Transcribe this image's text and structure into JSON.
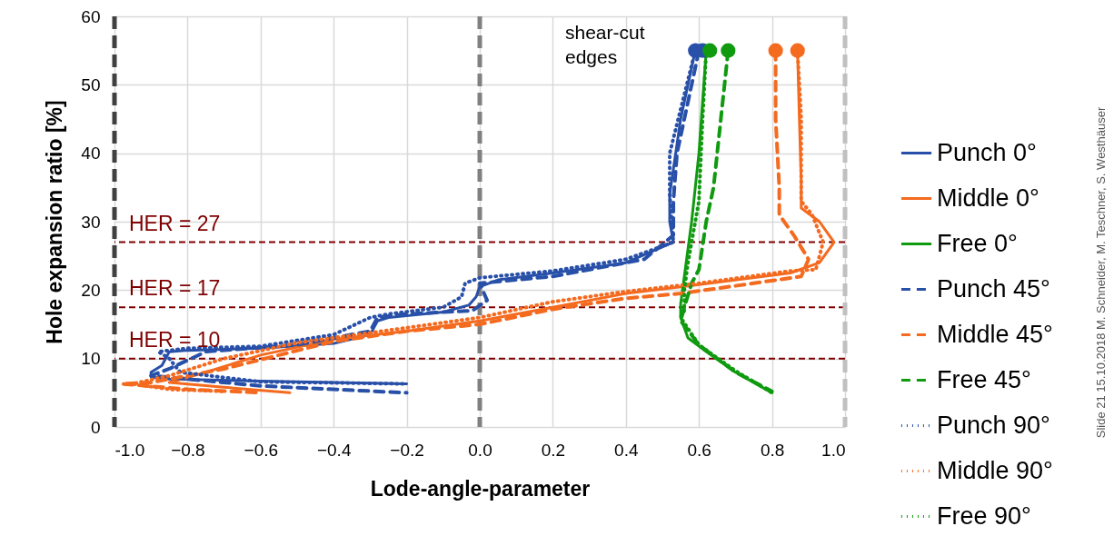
{
  "chart_data": {
    "type": "line",
    "xlabel": "Lode-angle-parameter",
    "ylabel": "Hole expansion ratio [%]",
    "xlim": [
      -1,
      1
    ],
    "ylim": [
      0,
      60
    ],
    "xticks": [
      {
        "value": -1,
        "label": "-1.0"
      },
      -0.8,
      -0.6,
      -0.4,
      -0.2,
      {
        "value": 0,
        "label": "0.0"
      },
      0.2,
      0.4,
      0.6,
      0.8,
      {
        "value": 1,
        "label": "1.0"
      }
    ],
    "yticks": [
      0,
      10,
      20,
      30,
      40,
      50,
      60
    ],
    "grid": true,
    "legend": "right",
    "marker": "none",
    "series": [
      {
        "name": "Punch 0°",
        "color": "#2850a8",
        "line_style": "solid",
        "x": [
          0.59,
          0.55,
          0.52,
          0.52,
          0.53,
          0.4,
          0.2,
          0.05,
          0.0,
          -0.01,
          -0.03,
          -0.1,
          -0.25,
          -0.28,
          -0.3,
          -0.4,
          -0.6,
          -0.8,
          -0.85,
          -0.87,
          -0.9,
          -0.9,
          -0.85,
          -0.6,
          -0.4,
          -0.2
        ],
        "values": [
          55,
          45,
          34,
          30,
          27,
          24,
          22.5,
          21.5,
          20.5,
          19,
          17.8,
          16.8,
          16,
          15.5,
          13.5,
          12.2,
          11.5,
          11.2,
          11,
          9,
          8,
          7.3,
          7,
          6.7,
          6.5,
          6.3
        ]
      },
      {
        "name": "Middle 0°",
        "color": "#f46a1f",
        "line_style": "solid",
        "x": [
          0.87,
          0.875,
          0.88,
          0.88,
          0.93,
          0.97,
          0.93,
          0.85,
          0.6,
          0.4,
          0.2,
          0.0,
          -0.2,
          -0.4,
          -0.6,
          -0.75,
          -0.85,
          -0.7,
          -0.52
        ],
        "values": [
          55,
          45,
          36,
          32,
          30,
          27,
          24,
          22.5,
          20.8,
          19.5,
          17.5,
          15.5,
          14,
          12.8,
          10.5,
          8,
          6.5,
          5.8,
          5
        ]
      },
      {
        "name": "Free 0°",
        "color": "#109a10",
        "line_style": "solid",
        "x": [
          0.62,
          0.6,
          0.58,
          0.56,
          0.55,
          0.55,
          0.57,
          0.62,
          0.7,
          0.8
        ],
        "values": [
          55,
          40,
          30,
          22,
          18,
          16,
          13,
          11,
          8,
          5
        ]
      },
      {
        "name": "Punch 45°",
        "color": "#2850a8",
        "line_style": "dashed",
        "x": [
          0.6,
          0.54,
          0.53,
          0.53,
          0.45,
          0.2,
          0.0,
          0.02,
          -0.02,
          -0.2,
          -0.28,
          -0.3,
          -0.5,
          -0.75,
          -0.85,
          -0.9,
          -0.6,
          -0.2
        ],
        "values": [
          55,
          40,
          33,
          28,
          24.5,
          22,
          21,
          18.5,
          17,
          16.5,
          16,
          14,
          12,
          11,
          8.5,
          7.5,
          6,
          5
        ]
      },
      {
        "name": "Middle 45°",
        "color": "#f46a1f",
        "line_style": "dashed",
        "x": [
          0.81,
          0.81,
          0.82,
          0.82,
          0.86,
          0.9,
          0.88,
          0.75,
          0.55,
          0.4,
          0.2,
          0.0,
          -0.2,
          -0.4,
          -0.7,
          -0.9,
          -0.98,
          -0.8,
          -0.6
        ],
        "values": [
          55,
          45,
          35,
          31,
          28,
          24.5,
          22,
          21,
          19.5,
          18.8,
          17.2,
          15,
          14,
          12.5,
          8.5,
          6.5,
          6.3,
          5.5,
          5
        ]
      },
      {
        "name": "Free 45°",
        "color": "#109a10",
        "line_style": "dashed",
        "x": [
          0.68,
          0.66,
          0.64,
          0.62,
          0.6,
          0.58,
          0.56,
          0.55,
          0.6,
          0.7,
          0.8
        ],
        "values": [
          55,
          45,
          35,
          30,
          23,
          21,
          17.5,
          15.5,
          12,
          8,
          5.2
        ]
      },
      {
        "name": "Punch 90°",
        "color": "#2850a8",
        "line_style": "dotted",
        "x": [
          0.59,
          0.52,
          0.52,
          0.53,
          0.4,
          0.2,
          0.0,
          -0.04,
          -0.05,
          -0.1,
          -0.25,
          -0.3,
          -0.4,
          -0.6,
          -0.8,
          -0.88,
          -0.85,
          -0.82,
          -0.6,
          -0.2
        ],
        "values": [
          55,
          40,
          34,
          27,
          24.5,
          22.8,
          21.8,
          21,
          19,
          17.5,
          16.5,
          16,
          13.5,
          11.8,
          11.5,
          11,
          10,
          8,
          6.6,
          6.3
        ]
      },
      {
        "name": "Middle 90°",
        "color": "#f46a1f",
        "line_style": "dotted",
        "x": [
          0.87,
          0.88,
          0.88,
          0.91,
          0.94,
          0.92,
          0.85,
          0.6,
          0.4,
          0.2,
          0.0,
          -0.2,
          -0.5,
          -0.7,
          -0.85,
          -0.95,
          -0.85,
          -0.7
        ],
        "values": [
          55,
          45,
          33,
          31,
          27,
          23,
          22.8,
          21,
          19.8,
          18.3,
          16,
          14.5,
          12.3,
          10,
          7.5,
          6.3,
          5.5,
          5.2
        ]
      },
      {
        "name": "Free 90°",
        "color": "#109a10",
        "line_style": "dotted",
        "x": [
          0.62,
          0.61,
          0.6,
          0.57,
          0.56,
          0.56,
          0.55,
          0.6,
          0.7,
          0.8
        ],
        "values": [
          55,
          45,
          33,
          24,
          20,
          17,
          16,
          12,
          8.2,
          5
        ]
      },
      {
        "type": "scatter",
        "marker": "circle",
        "x": [
          0.59,
          0.61,
          0.63,
          0.68,
          0.81,
          0.87
        ],
        "values": [
          55,
          55,
          55,
          55,
          55,
          55
        ],
        "colors": [
          "#2850a8",
          "#2850a8",
          "#109a10",
          "#109a10",
          "#f46a1f",
          "#f46a1f"
        ]
      }
    ],
    "ref_lines": [
      {
        "axis": "x",
        "value": -1,
        "color": "#404040",
        "line_style": "dashed"
      },
      {
        "axis": "x",
        "value": 0,
        "color": "#808080",
        "line_style": "dashed"
      },
      {
        "axis": "x",
        "value": 1,
        "color": "#c0c0c0",
        "line_style": "dashed"
      },
      {
        "axis": "y",
        "value": 27,
        "label": "HER = 27",
        "color": "#800000",
        "line_style": "dashed"
      },
      {
        "axis": "y",
        "value": 17.5,
        "label": "HER = 17",
        "color": "#800000",
        "line_style": "dashed"
      },
      {
        "axis": "y",
        "value": 10,
        "label": "HER = 10",
        "color": "#800000",
        "line_style": "dashed"
      }
    ],
    "annotations": [
      "shear-cut edges",
      "Slide 21 15.10.2018 M. Schneider, M. Teschner, S. Westhäuser"
    ]
  }
}
